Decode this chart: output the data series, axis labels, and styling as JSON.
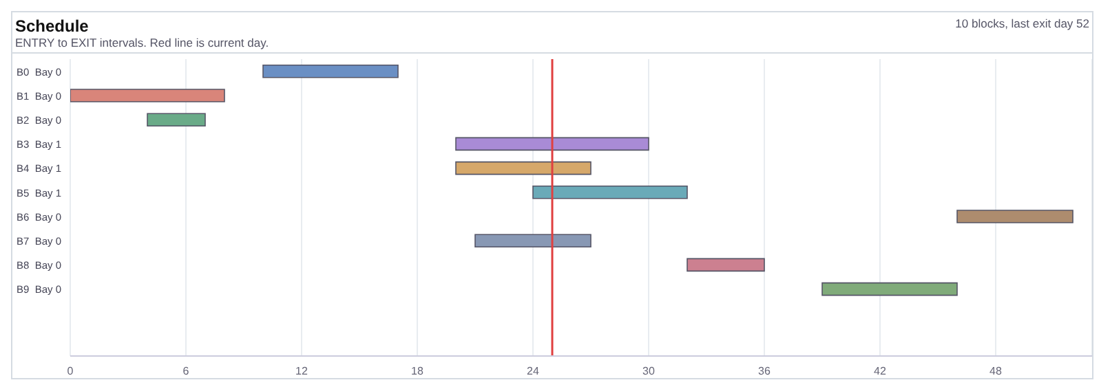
{
  "chart_data": {
    "type": "bar",
    "orientation": "horizontal",
    "title": "Schedule",
    "subtitle": "ENTRY to EXIT intervals. Red line is current day.",
    "annotations": [
      "10 blocks, last exit day 52"
    ],
    "categories": [
      "B0  Bay 0",
      "B1  Bay 0",
      "B2  Bay 0",
      "B3  Bay 1",
      "B4  Bay 1",
      "B5  Bay 1",
      "B6  Bay 0",
      "B7  Bay 0",
      "B8  Bay 0",
      "B9  Bay 0"
    ],
    "base": [
      10,
      0,
      4,
      20,
      20,
      24,
      46,
      21,
      32,
      39
    ],
    "values": [
      7,
      8,
      3,
      10,
      7,
      8,
      6,
      6,
      4,
      7
    ],
    "colors": [
      "#6a8fc4",
      "#d9857a",
      "#6aab88",
      "#a98bd6",
      "#d6a86a",
      "#6aaab8",
      "#ad8c6e",
      "#8898b4",
      "#cc8090",
      "#80ab7a"
    ],
    "xlim": [
      0,
      53
    ],
    "xticks": [
      0,
      6,
      12,
      18,
      24,
      30,
      36,
      42,
      48
    ],
    "grid": "x",
    "ref_lines": [
      {
        "axis": "x",
        "value": 25,
        "color": "#e04040"
      }
    ]
  }
}
